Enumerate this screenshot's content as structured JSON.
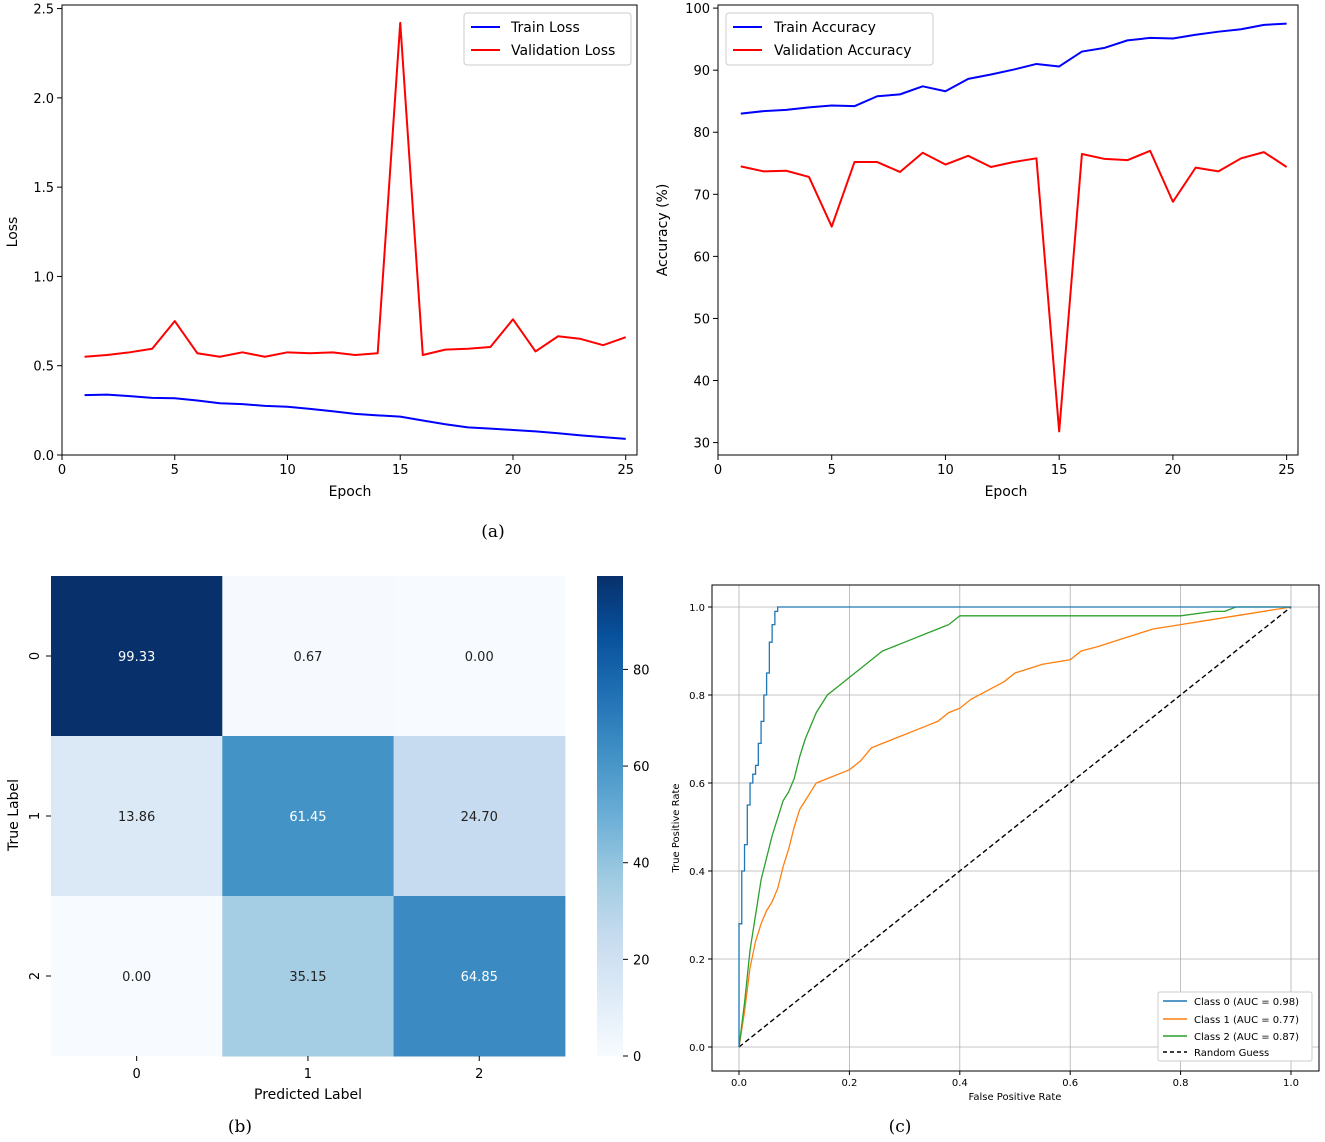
{
  "chart_data": [
    {
      "id": "loss",
      "type": "line",
      "title": "",
      "xlabel": "Epoch",
      "ylabel": "Loss",
      "xlim": [
        0,
        25.5
      ],
      "ylim": [
        0,
        2.52
      ],
      "xticks": [
        "0",
        "5",
        "10",
        "15",
        "20",
        "25"
      ],
      "yticks": [
        "0.0",
        "0.5",
        "1.0",
        "1.5",
        "2.0",
        "2.5"
      ],
      "grid": false,
      "legend": "top-right",
      "x": [
        1,
        2,
        3,
        4,
        5,
        6,
        7,
        8,
        9,
        10,
        11,
        12,
        13,
        14,
        15,
        16,
        17,
        18,
        19,
        20,
        21,
        22,
        23,
        24,
        25
      ],
      "series": [
        {
          "name": "Train Loss",
          "color": "#0000ff",
          "values": [
            0.335,
            0.338,
            0.33,
            0.32,
            0.318,
            0.305,
            0.29,
            0.285,
            0.275,
            0.27,
            0.258,
            0.245,
            0.23,
            0.222,
            0.215,
            0.193,
            0.172,
            0.155,
            0.148,
            0.14,
            0.132,
            0.122,
            0.11,
            0.1,
            0.09
          ]
        },
        {
          "name": "Validation Loss",
          "color": "#ff0000",
          "values": [
            0.55,
            0.56,
            0.575,
            0.595,
            0.75,
            0.57,
            0.55,
            0.575,
            0.55,
            0.575,
            0.57,
            0.575,
            0.56,
            0.57,
            2.42,
            0.56,
            0.59,
            0.595,
            0.605,
            0.76,
            0.58,
            0.665,
            0.65,
            0.615,
            0.66
          ]
        }
      ]
    },
    {
      "id": "accuracy",
      "type": "line",
      "title": "",
      "xlabel": "Epoch",
      "ylabel": "Accuracy (%)",
      "xlim": [
        0,
        25.5
      ],
      "ylim": [
        28,
        100.5
      ],
      "xticks": [
        "0",
        "5",
        "10",
        "15",
        "20",
        "25"
      ],
      "yticks": [
        "30",
        "40",
        "50",
        "60",
        "70",
        "80",
        "90",
        "100"
      ],
      "grid": false,
      "legend": "top-left",
      "x": [
        1,
        2,
        3,
        4,
        5,
        6,
        7,
        8,
        9,
        10,
        11,
        12,
        13,
        14,
        15,
        16,
        17,
        18,
        19,
        20,
        21,
        22,
        23,
        24,
        25
      ],
      "series": [
        {
          "name": "Train Accuracy",
          "color": "#0000ff",
          "values": [
            83,
            83.4,
            83.6,
            84,
            84.3,
            84.2,
            85.8,
            86.1,
            87.4,
            86.6,
            88.6,
            89.3,
            90.1,
            91,
            90.6,
            93,
            93.6,
            94.8,
            95.2,
            95.1,
            95.7,
            96.2,
            96.6,
            97.3,
            97.5
          ]
        },
        {
          "name": "Validation Accuracy",
          "color": "#ff0000",
          "values": [
            74.5,
            73.7,
            73.8,
            72.8,
            64.8,
            75.2,
            75.2,
            73.6,
            76.7,
            74.8,
            76.2,
            74.4,
            75.2,
            75.8,
            31.8,
            76.5,
            75.7,
            75.5,
            77,
            68.8,
            74.3,
            73.7,
            75.8,
            76.8,
            74.4
          ]
        }
      ]
    },
    {
      "id": "confusion",
      "type": "heatmap",
      "title": "",
      "xlabel": "Predicted Label",
      "ylabel": "True Label",
      "x_categories": [
        "0",
        "1",
        "2"
      ],
      "y_categories": [
        "0",
        "1",
        "2"
      ],
      "labels": [
        [
          "99.33",
          "0.67",
          "0.00"
        ],
        [
          "13.86",
          "61.45",
          "24.70"
        ],
        [
          "0.00",
          "35.15",
          "64.85"
        ]
      ],
      "values": [
        [
          99.33,
          0.67,
          0.0
        ],
        [
          13.86,
          61.45,
          24.7
        ],
        [
          0.0,
          35.15,
          64.85
        ]
      ],
      "colorbar": {
        "ticks": [
          "0",
          "20",
          "40",
          "60",
          "80"
        ],
        "min": 0,
        "max": 99.33,
        "colormap": "Blues"
      }
    },
    {
      "id": "roc",
      "type": "line",
      "title": "",
      "xlabel": "False Positive Rate",
      "ylabel": "True Positive Rate",
      "xlim": [
        -0.05,
        1.05
      ],
      "ylim": [
        -0.05,
        1.05
      ],
      "xticks": [
        "0.0",
        "0.2",
        "0.4",
        "0.6",
        "0.8",
        "1.0"
      ],
      "yticks": [
        "0.0",
        "0.2",
        "0.4",
        "0.6",
        "0.8",
        "1.0"
      ],
      "grid": true,
      "legend": "bottom-right",
      "series": [
        {
          "name": "Class 0 (AUC = 0.98)",
          "color": "#1f77b4",
          "x": [
            0,
            0,
            0.005,
            0.005,
            0.01,
            0.01,
            0.015,
            0.015,
            0.02,
            0.02,
            0.025,
            0.025,
            0.03,
            0.03,
            0.035,
            0.035,
            0.04,
            0.04,
            0.045,
            0.045,
            0.05,
            0.05,
            0.055,
            0.055,
            0.06,
            0.06,
            0.065,
            0.065,
            0.07,
            0.07,
            1
          ],
          "y": [
            0,
            0.28,
            0.28,
            0.4,
            0.4,
            0.46,
            0.46,
            0.55,
            0.55,
            0.6,
            0.6,
            0.62,
            0.62,
            0.64,
            0.64,
            0.69,
            0.69,
            0.74,
            0.74,
            0.8,
            0.8,
            0.85,
            0.85,
            0.92,
            0.92,
            0.96,
            0.96,
            0.99,
            0.99,
            1,
            1
          ]
        },
        {
          "name": "Class 1 (AUC = 0.77)",
          "color": "#ff7f0e",
          "x": [
            0,
            0.01,
            0.02,
            0.03,
            0.04,
            0.05,
            0.06,
            0.07,
            0.08,
            0.09,
            0.1,
            0.11,
            0.12,
            0.13,
            0.14,
            0.16,
            0.18,
            0.2,
            0.22,
            0.24,
            0.26,
            0.28,
            0.3,
            0.32,
            0.34,
            0.36,
            0.38,
            0.4,
            0.42,
            0.45,
            0.48,
            0.5,
            0.55,
            0.6,
            0.62,
            0.65,
            0.7,
            0.75,
            0.8,
            0.85,
            0.9,
            1
          ],
          "y": [
            0,
            0.08,
            0.18,
            0.24,
            0.28,
            0.31,
            0.33,
            0.36,
            0.41,
            0.45,
            0.5,
            0.54,
            0.56,
            0.58,
            0.6,
            0.61,
            0.62,
            0.63,
            0.65,
            0.68,
            0.69,
            0.7,
            0.71,
            0.72,
            0.73,
            0.74,
            0.76,
            0.77,
            0.79,
            0.81,
            0.83,
            0.85,
            0.87,
            0.88,
            0.9,
            0.91,
            0.93,
            0.95,
            0.96,
            0.97,
            0.98,
            1
          ]
        },
        {
          "name": "Class 2 (AUC = 0.87)",
          "color": "#2ca02c",
          "x": [
            0,
            0.01,
            0.02,
            0.03,
            0.04,
            0.05,
            0.06,
            0.07,
            0.08,
            0.09,
            0.1,
            0.11,
            0.12,
            0.13,
            0.14,
            0.16,
            0.18,
            0.2,
            0.22,
            0.24,
            0.26,
            0.28,
            0.3,
            0.32,
            0.34,
            0.36,
            0.38,
            0.4,
            0.42,
            0.45,
            0.5,
            0.6,
            0.7,
            0.8,
            0.86,
            0.88,
            0.9,
            0.95,
            1
          ],
          "y": [
            0,
            0.1,
            0.22,
            0.3,
            0.38,
            0.43,
            0.48,
            0.52,
            0.56,
            0.58,
            0.61,
            0.66,
            0.7,
            0.73,
            0.76,
            0.8,
            0.82,
            0.84,
            0.86,
            0.88,
            0.9,
            0.91,
            0.92,
            0.93,
            0.94,
            0.95,
            0.96,
            0.98,
            0.98,
            0.98,
            0.98,
            0.98,
            0.98,
            0.98,
            0.99,
            0.99,
            1,
            1,
            1
          ]
        },
        {
          "name": "Random Guess",
          "color": "#000000",
          "dashed": true,
          "x": [
            0,
            1
          ],
          "y": [
            0,
            1
          ]
        }
      ]
    }
  ],
  "captions": {
    "a": "(a)",
    "b": "(b)",
    "c": "(c)"
  }
}
